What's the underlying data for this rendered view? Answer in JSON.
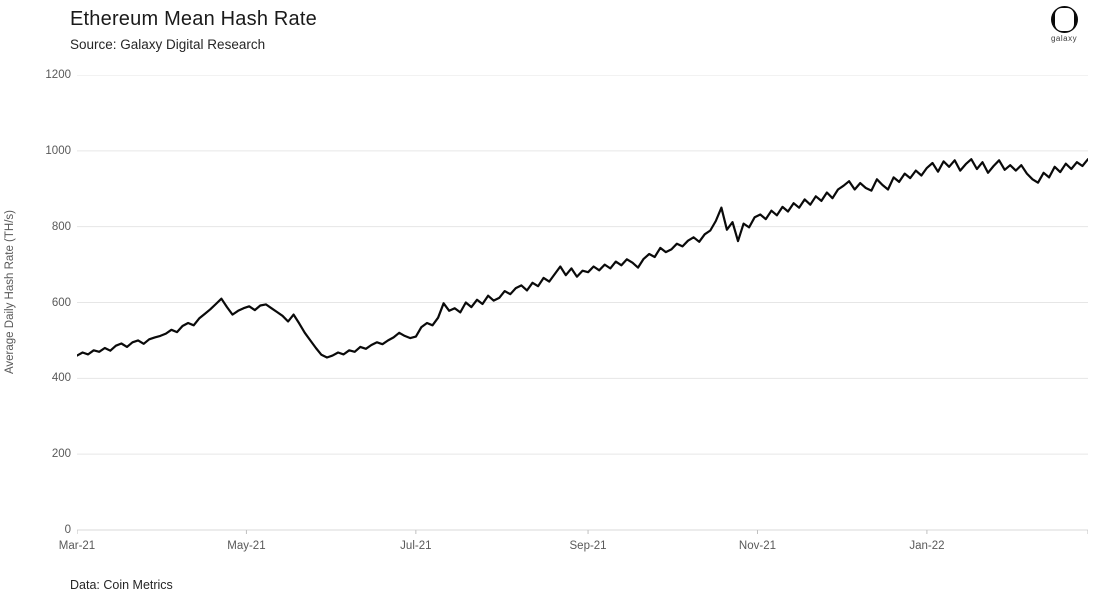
{
  "header": {
    "title": "Ethereum Mean Hash Rate",
    "subtitle": "Source: Galaxy Digital Research",
    "logo_text": "galaxy"
  },
  "footer": {
    "note": "Data: Coin Metrics"
  },
  "colors": {
    "line": "#0a0a0a",
    "grid": "#e6e6e6",
    "axis": "#d9d9d9",
    "tick_mark": "#c0c0c0",
    "tick_text": "#595959",
    "title_text": "#1a1a1a"
  },
  "chart_data": {
    "type": "line",
    "title": "Ethereum Mean Hash Rate",
    "subtitle": "Source: Galaxy Digital Research",
    "xlabel": "",
    "ylabel": "Average Daily Hash Rate (TH/s)",
    "ylim": [
      0,
      1200
    ],
    "y_ticks": [
      0,
      200,
      400,
      600,
      800,
      1000,
      1200
    ],
    "x_range": {
      "start": "2021-03-01",
      "end": "2022-02-28"
    },
    "x_ticks": [
      {
        "label": "Mar-21",
        "date": "2021-03-01"
      },
      {
        "label": "May-21",
        "date": "2021-05-01"
      },
      {
        "label": "Jul-21",
        "date": "2021-07-01"
      },
      {
        "label": "Sep-21",
        "date": "2021-09-01"
      },
      {
        "label": "Nov-21",
        "date": "2021-11-01"
      },
      {
        "label": "Jan-22",
        "date": "2022-01-01"
      }
    ],
    "grid": "horizontal",
    "legend": "none",
    "series": [
      {
        "name": "Ethereum mean hash rate (TH/s)",
        "start_date": "2021-03-01",
        "interval_days": 2,
        "values": [
          460,
          468,
          463,
          474,
          470,
          480,
          473,
          486,
          492,
          483,
          495,
          500,
          491,
          503,
          508,
          512,
          518,
          528,
          522,
          538,
          546,
          540,
          558,
          570,
          582,
          596,
          610,
          588,
          568,
          578,
          585,
          590,
          580,
          592,
          595,
          585,
          575,
          565,
          550,
          568,
          545,
          520,
          500,
          480,
          462,
          455,
          460,
          468,
          463,
          474,
          470,
          483,
          478,
          488,
          495,
          490,
          500,
          508,
          520,
          512,
          506,
          510,
          535,
          546,
          540,
          560,
          598,
          578,
          585,
          574,
          600,
          588,
          607,
          596,
          618,
          605,
          612,
          630,
          622,
          638,
          645,
          632,
          652,
          643,
          665,
          655,
          675,
          695,
          672,
          690,
          668,
          684,
          680,
          695,
          685,
          700,
          690,
          708,
          698,
          714,
          705,
          692,
          715,
          728,
          720,
          744,
          733,
          740,
          755,
          748,
          763,
          772,
          760,
          780,
          790,
          815,
          850,
          792,
          812,
          762,
          808,
          798,
          825,
          832,
          820,
          842,
          830,
          852,
          840,
          862,
          850,
          872,
          858,
          880,
          868,
          890,
          875,
          898,
          908,
          920,
          898,
          915,
          902,
          895,
          925,
          910,
          898,
          930,
          918,
          940,
          928,
          948,
          935,
          955,
          968,
          945,
          972,
          958,
          975,
          948,
          965,
          978,
          952,
          970,
          942,
          960,
          975,
          950,
          962,
          948,
          962,
          940,
          925,
          916,
          942,
          930,
          958,
          944,
          966,
          952,
          970,
          960,
          978
        ]
      }
    ]
  }
}
